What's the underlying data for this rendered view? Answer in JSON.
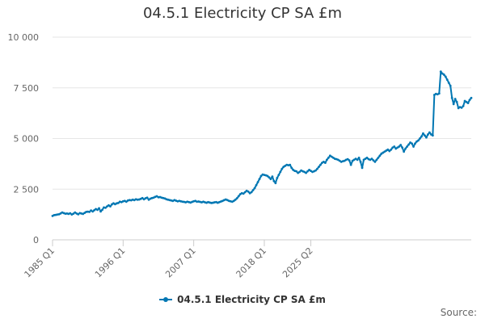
{
  "chart_data": {
    "type": "line",
    "title": "04.5.1 Electricity CP SA £m",
    "xlabel": "",
    "ylabel": "",
    "x_tick_labels": [
      "1985 Q1",
      "1996 Q1",
      "2007 Q1",
      "2018 Q1",
      "2025 Q2"
    ],
    "y_ticks": [
      0,
      2500,
      5000,
      7500,
      10000
    ],
    "y_tick_labels": [
      "0",
      "2 500",
      "5 000",
      "7 500",
      "10 000"
    ],
    "ylim": [
      0,
      10000
    ],
    "x_start": "1985 Q1",
    "x_end": "2025 Q2",
    "grid": "horizontal",
    "legend_position": "bottom",
    "source_label": "Source:",
    "color": "#0077b3",
    "series": [
      {
        "name": "04.5.1 Electricity CP SA £m",
        "values": [
          1180,
          1220,
          1230,
          1250,
          1260,
          1300,
          1350,
          1320,
          1290,
          1300,
          1280,
          1310,
          1250,
          1290,
          1350,
          1300,
          1260,
          1320,
          1300,
          1280,
          1330,
          1380,
          1390,
          1380,
          1450,
          1400,
          1460,
          1520,
          1480,
          1560,
          1400,
          1480,
          1600,
          1580,
          1650,
          1700,
          1650,
          1750,
          1800,
          1760,
          1800,
          1820,
          1880,
          1860,
          1900,
          1920,
          1880,
          1940,
          1960,
          1950,
          1980,
          1960,
          2000,
          1980,
          1990,
          2020,
          2060,
          2000,
          2050,
          2080,
          1980,
          2030,
          2060,
          2080,
          2120,
          2150,
          2100,
          2110,
          2080,
          2060,
          2040,
          2000,
          1980,
          1960,
          1940,
          1920,
          1960,
          1930,
          1900,
          1920,
          1900,
          1880,
          1870,
          1850,
          1880,
          1860,
          1840,
          1870,
          1900,
          1920,
          1880,
          1890,
          1870,
          1850,
          1880,
          1850,
          1830,
          1860,
          1840,
          1820,
          1830,
          1850,
          1860,
          1830,
          1860,
          1890,
          1920,
          1960,
          1990,
          1960,
          1920,
          1900,
          1880,
          1920,
          1980,
          2050,
          2150,
          2250,
          2300,
          2280,
          2350,
          2420,
          2380,
          2300,
          2350,
          2450,
          2550,
          2700,
          2850,
          3000,
          3150,
          3220,
          3200,
          3180,
          3150,
          3080,
          3000,
          3120,
          2900,
          2800,
          3050,
          3200,
          3350,
          3500,
          3600,
          3650,
          3700,
          3680,
          3700,
          3550,
          3450,
          3400,
          3380,
          3300,
          3350,
          3420,
          3380,
          3350,
          3300,
          3380,
          3450,
          3400,
          3350,
          3380,
          3420,
          3500,
          3600,
          3700,
          3800,
          3850,
          3800,
          3950,
          4050,
          4150,
          4100,
          4050,
          4000,
          3980,
          3950,
          3900,
          3850,
          3880,
          3900,
          3950,
          3980,
          3920,
          3700,
          3900,
          3950,
          4000,
          3950,
          4050,
          3850,
          3550,
          3950,
          4000,
          4050,
          3980,
          3950,
          4000,
          3920,
          3850,
          3950,
          4050,
          4150,
          4250,
          4300,
          4350,
          4400,
          4450,
          4380,
          4450,
          4550,
          4600,
          4500,
          4550,
          4600,
          4680,
          4550,
          4350,
          4500,
          4600,
          4700,
          4800,
          4750,
          4600,
          4750,
          4850,
          4900,
          5000,
          5100,
          5250,
          5150,
          5050,
          5200,
          5300,
          5200,
          5150,
          7150,
          7200,
          7180,
          7220,
          8300,
          8200,
          8150,
          8050,
          7900,
          7750,
          7600,
          7000,
          6700,
          6950,
          6800,
          6500,
          6550,
          6520,
          6600,
          6850,
          6800,
          6750,
          6900,
          7000
        ]
      }
    ]
  }
}
